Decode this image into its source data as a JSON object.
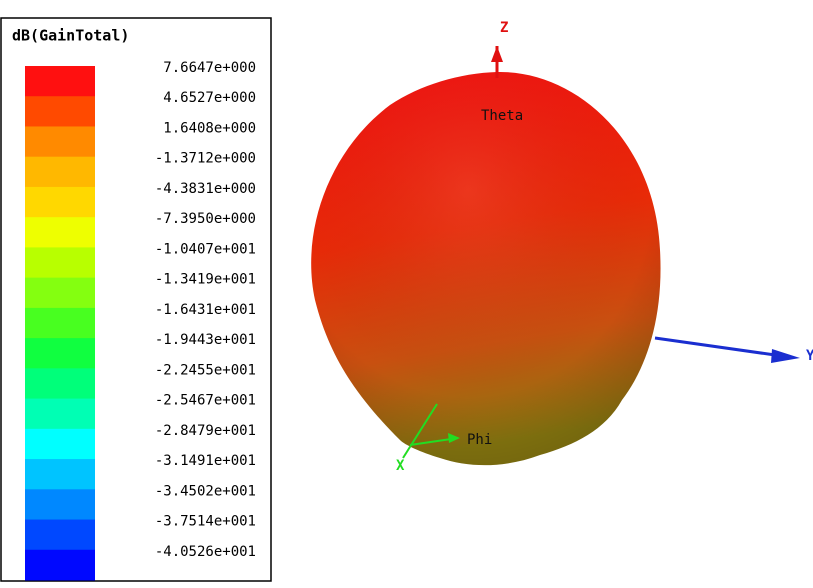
{
  "legend": {
    "title": "dB(GainTotal)",
    "labels": [
      "7.6647e+000",
      "4.6527e+000",
      "1.6408e+000",
      "-1.3712e+000",
      "-4.3831e+000",
      "-7.3950e+000",
      "-1.0407e+001",
      "-1.3419e+001",
      "-1.6431e+001",
      "-1.9443e+001",
      "-2.2455e+001",
      "-2.5467e+001",
      "-2.8479e+001",
      "-3.1491e+001",
      "-3.4502e+001",
      "-3.7514e+001",
      "-4.0526e+001"
    ]
  },
  "axes": {
    "z": "Z",
    "y": "Y",
    "x": "X"
  },
  "annotations": {
    "theta": "Theta",
    "phi": "Phi"
  }
}
